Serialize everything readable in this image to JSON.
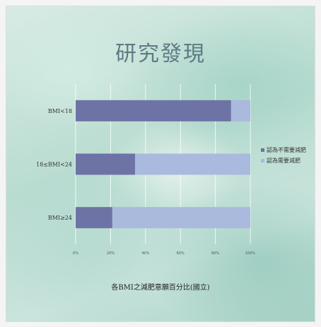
{
  "slide": {
    "title": "研究發現"
  },
  "chart_data": {
    "type": "bar",
    "orientation": "horizontal",
    "stacked": true,
    "percent": true,
    "title": "研究發現",
    "xlabel": "各BMI之減肥意願百分比(國立)",
    "ylabel": "",
    "categories": [
      "BMI<18",
      "18≤BMI<24",
      "BMI≥24"
    ],
    "x_ticks": [
      "0%",
      "20%",
      "40%",
      "60%",
      "80%",
      "100%"
    ],
    "xlim": [
      0,
      100
    ],
    "grid": true,
    "legend_position": "right",
    "series": [
      {
        "name": "認為不需要減肥",
        "values": [
          89,
          34,
          21
        ],
        "color": "#6e73a6"
      },
      {
        "name": "認為需要減肥",
        "values": [
          11,
          66,
          79
        ],
        "color": "#aab9de"
      }
    ]
  }
}
